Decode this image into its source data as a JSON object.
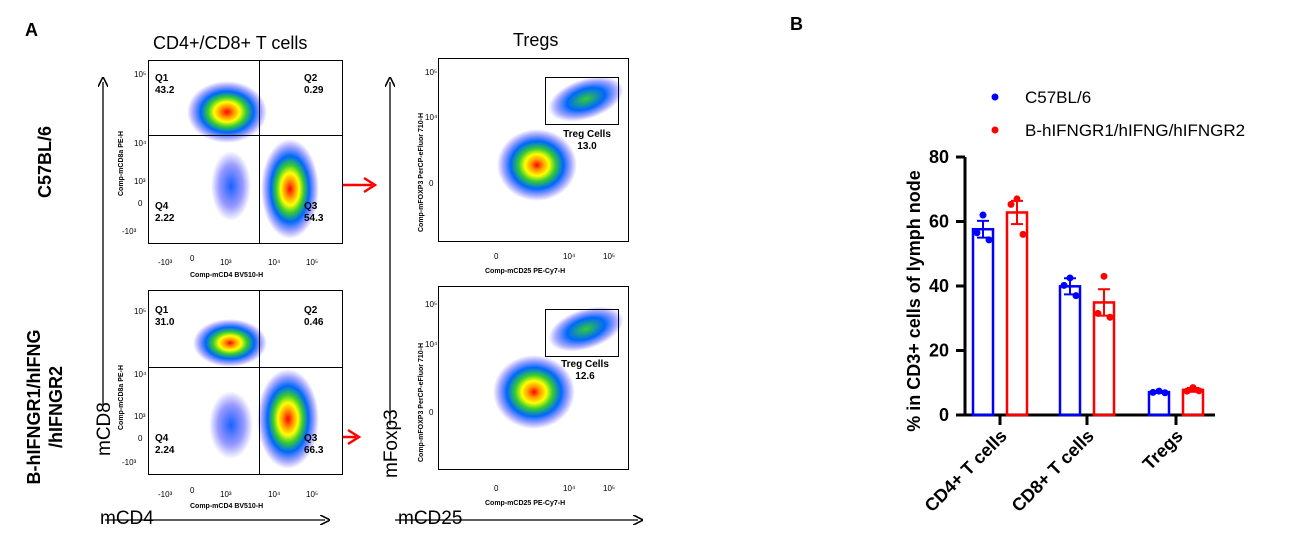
{
  "panel_a": {
    "label": "A",
    "col1_title": "CD4+/CD8+ T cells",
    "col2_title": "Tregs",
    "row1_label": "C57BL/6",
    "row2_label_line1": "B-hIFNGR1/hIFNG",
    "row2_label_line2": "/hIFNGR2",
    "axis_mcd8": "mCD8",
    "axis_mcd4": "mCD4",
    "axis_mfoxp3": "mFoxp3",
    "axis_mcd25": "mCD25",
    "plot_x_label_cd4": "Comp-mCD4 BV510-H",
    "plot_y_label_cd8": "Comp-mCD8a PE-H",
    "plot_x_label_cd25": "Comp-mCD25 PE-Cy7-H",
    "plot_y_label_foxp3": "Comp-mFOXP3 PerCP-eFluor 710-H",
    "ticks_x_cd4": [
      "-10³",
      "0",
      "10³",
      "10⁴",
      "10⁵"
    ],
    "ticks_y_cd8": [
      "10⁵",
      "10⁴",
      "10³",
      "0",
      "-10³"
    ],
    "ticks_x_cd25": [
      "0",
      "10⁴",
      "10⁵"
    ],
    "ticks_y_foxp3": [
      "10⁵",
      "10⁴",
      "0"
    ],
    "top_row": {
      "q1_name": "Q1",
      "q1_value": "43.2",
      "q2_name": "Q2",
      "q2_value": "0.29",
      "q3_name": "Q3",
      "q3_value": "54.3",
      "q4_name": "Q4",
      "q4_value": "2.22",
      "gate_name": "Treg Cells",
      "gate_value": "13.0"
    },
    "bottom_row": {
      "q1_name": "Q1",
      "q1_value": "31.0",
      "q2_name": "Q2",
      "q2_value": "0.46",
      "q3_name": "Q3",
      "q3_value": "66.3",
      "q4_name": "Q4",
      "q4_value": "2.24",
      "gate_name": "Treg Cells",
      "gate_value": "12.6"
    },
    "arrow_color": "#ff0000"
  },
  "panel_b": {
    "label": "B"
  },
  "chart_data": {
    "type": "bar",
    "categories": [
      "CD4+ T cells",
      "CD8+ T cells",
      "Tregs"
    ],
    "ylabel": "% in CD3+ cells of lymph node",
    "xlabel": "",
    "ylim": [
      0,
      80
    ],
    "yticks": [
      0,
      20,
      40,
      60,
      80
    ],
    "legend_position": "top-right",
    "series": [
      {
        "name": "C57BL/6",
        "color": "#0000ff",
        "values": [
          57.6,
          39.9,
          7.1
        ],
        "sem": [
          2.6,
          2.5,
          0.3
        ],
        "points": [
          [
            62.0,
            56.5,
            54.3
          ],
          [
            42.5,
            40.2,
            37.0
          ],
          [
            7.4,
            7.0,
            6.9
          ]
        ]
      },
      {
        "name": "B-hIFNGR1/hIFNG/hIFNGR2",
        "color": "#ff0000",
        "values": [
          62.8,
          34.9,
          7.8
        ],
        "sem": [
          3.6,
          4.1,
          0.6
        ],
        "points": [
          [
            67.0,
            65.3,
            56.0
          ],
          [
            43.0,
            31.5,
            30.3
          ],
          [
            8.5,
            7.4,
            7.5
          ]
        ]
      }
    ]
  }
}
